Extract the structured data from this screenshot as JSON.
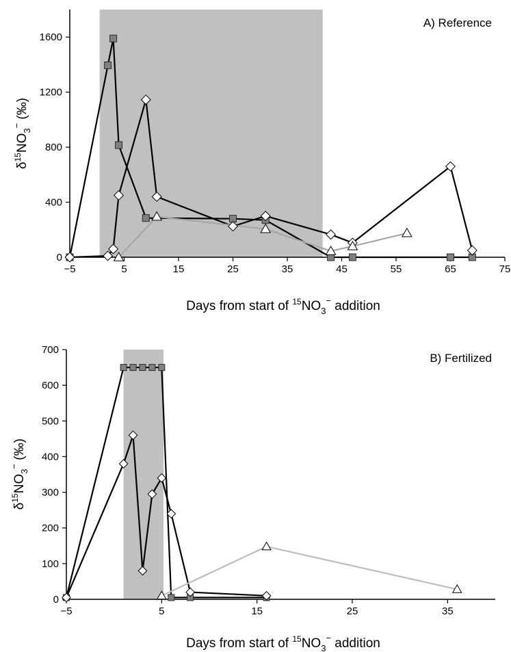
{
  "chart_data": [
    {
      "type": "line",
      "panel_label": "A) Reference",
      "xlabel_prefix": "Days from start of ",
      "xlabel_suffix": " addition",
      "ylabel_prefix": "δ",
      "ylabel_suffix": " (‰)",
      "isotope_mass": "15",
      "ion_base": "NO",
      "ion_subscript": "3",
      "ion_charge": "−",
      "xlim": [
        -5,
        75
      ],
      "ylim": [
        0,
        1800
      ],
      "xticks": [
        -5,
        5,
        15,
        25,
        35,
        45,
        55,
        65,
        75
      ],
      "xtick_labels": [
        "−5",
        "5",
        "15",
        "25",
        "35",
        "45",
        "55",
        "65",
        "75"
      ],
      "yticks": [
        0,
        400,
        800,
        1200,
        1600
      ],
      "ytick_labels": [
        "0",
        "400",
        "800",
        "1200",
        "1600"
      ],
      "shaded_x": [
        0.5,
        41.5
      ],
      "colors": {
        "shade": "#c0c0c0",
        "square": "#808080",
        "open": "#ffffff",
        "line_dark": "#000000",
        "line_gray": "#a6a6a6"
      },
      "series": [
        {
          "marker": "square",
          "line": "dark",
          "points": [
            [
              -5,
              0
            ],
            [
              2,
              1395
            ],
            [
              3,
              1590
            ],
            [
              4,
              815
            ],
            [
              9,
              285
            ],
            [
              25,
              280
            ],
            [
              31,
              270
            ],
            [
              43,
              0
            ],
            [
              47,
              0
            ],
            [
              65,
              0
            ],
            [
              69,
              0
            ]
          ]
        },
        {
          "marker": "diamond",
          "line": "dark",
          "points": [
            [
              -5,
              0
            ],
            [
              2,
              10
            ],
            [
              3,
              60
            ],
            [
              4,
              450
            ],
            [
              9,
              1145
            ],
            [
              11,
              440
            ],
            [
              25,
              225
            ],
            [
              31,
              300
            ],
            [
              43,
              165
            ],
            [
              47,
              105
            ],
            [
              65,
              660
            ],
            [
              69,
              50
            ]
          ]
        },
        {
          "marker": "triangle",
          "line": "gray",
          "points": [
            [
              4,
              0
            ],
            [
              11,
              295
            ],
            [
              31,
              205
            ],
            [
              43,
              45
            ],
            [
              47,
              80
            ],
            [
              57,
              175
            ]
          ]
        }
      ]
    },
    {
      "type": "line",
      "panel_label": "B) Fertilized",
      "xlabel_prefix": "Days from start of ",
      "xlabel_suffix": " addition",
      "ylabel_prefix": "δ",
      "ylabel_suffix": " (‰)",
      "isotope_mass": "15",
      "ion_base": "NO",
      "ion_subscript": "3",
      "ion_charge": "−",
      "xlim": [
        -5,
        40
      ],
      "ylim": [
        0,
        700
      ],
      "xticks": [
        -5,
        5,
        15,
        25,
        35
      ],
      "xtick_labels": [
        "−5",
        "5",
        "15",
        "25",
        "35"
      ],
      "yticks": [
        0,
        100,
        200,
        300,
        400,
        500,
        600,
        700
      ],
      "ytick_labels": [
        "0",
        "100",
        "200",
        "300",
        "400",
        "500",
        "600",
        "700"
      ],
      "shaded_x": [
        1,
        5.2
      ],
      "colors": {
        "shade": "#c0c0c0",
        "square": "#808080",
        "open": "#ffffff",
        "line_dark": "#000000",
        "line_gray": "#bdbdbd"
      },
      "series": [
        {
          "marker": "square",
          "line": "dark",
          "points": [
            [
              -5,
              5
            ],
            [
              1,
              650
            ],
            [
              2,
              650
            ],
            [
              3,
              650
            ],
            [
              4,
              650
            ],
            [
              5,
              650
            ],
            [
              6,
              5
            ],
            [
              8,
              5
            ],
            [
              16,
              5
            ]
          ]
        },
        {
          "marker": "diamond",
          "line": "dark",
          "points": [
            [
              -5,
              5
            ],
            [
              1,
              380
            ],
            [
              2,
              460
            ],
            [
              3,
              80
            ],
            [
              4,
              295
            ],
            [
              5,
              340
            ],
            [
              6,
              240
            ],
            [
              8,
              20
            ],
            [
              16,
              10
            ]
          ]
        },
        {
          "marker": "triangle",
          "line": "gray",
          "points": [
            [
              5,
              10
            ],
            [
              16,
              148
            ],
            [
              36,
              28
            ]
          ]
        }
      ]
    }
  ]
}
